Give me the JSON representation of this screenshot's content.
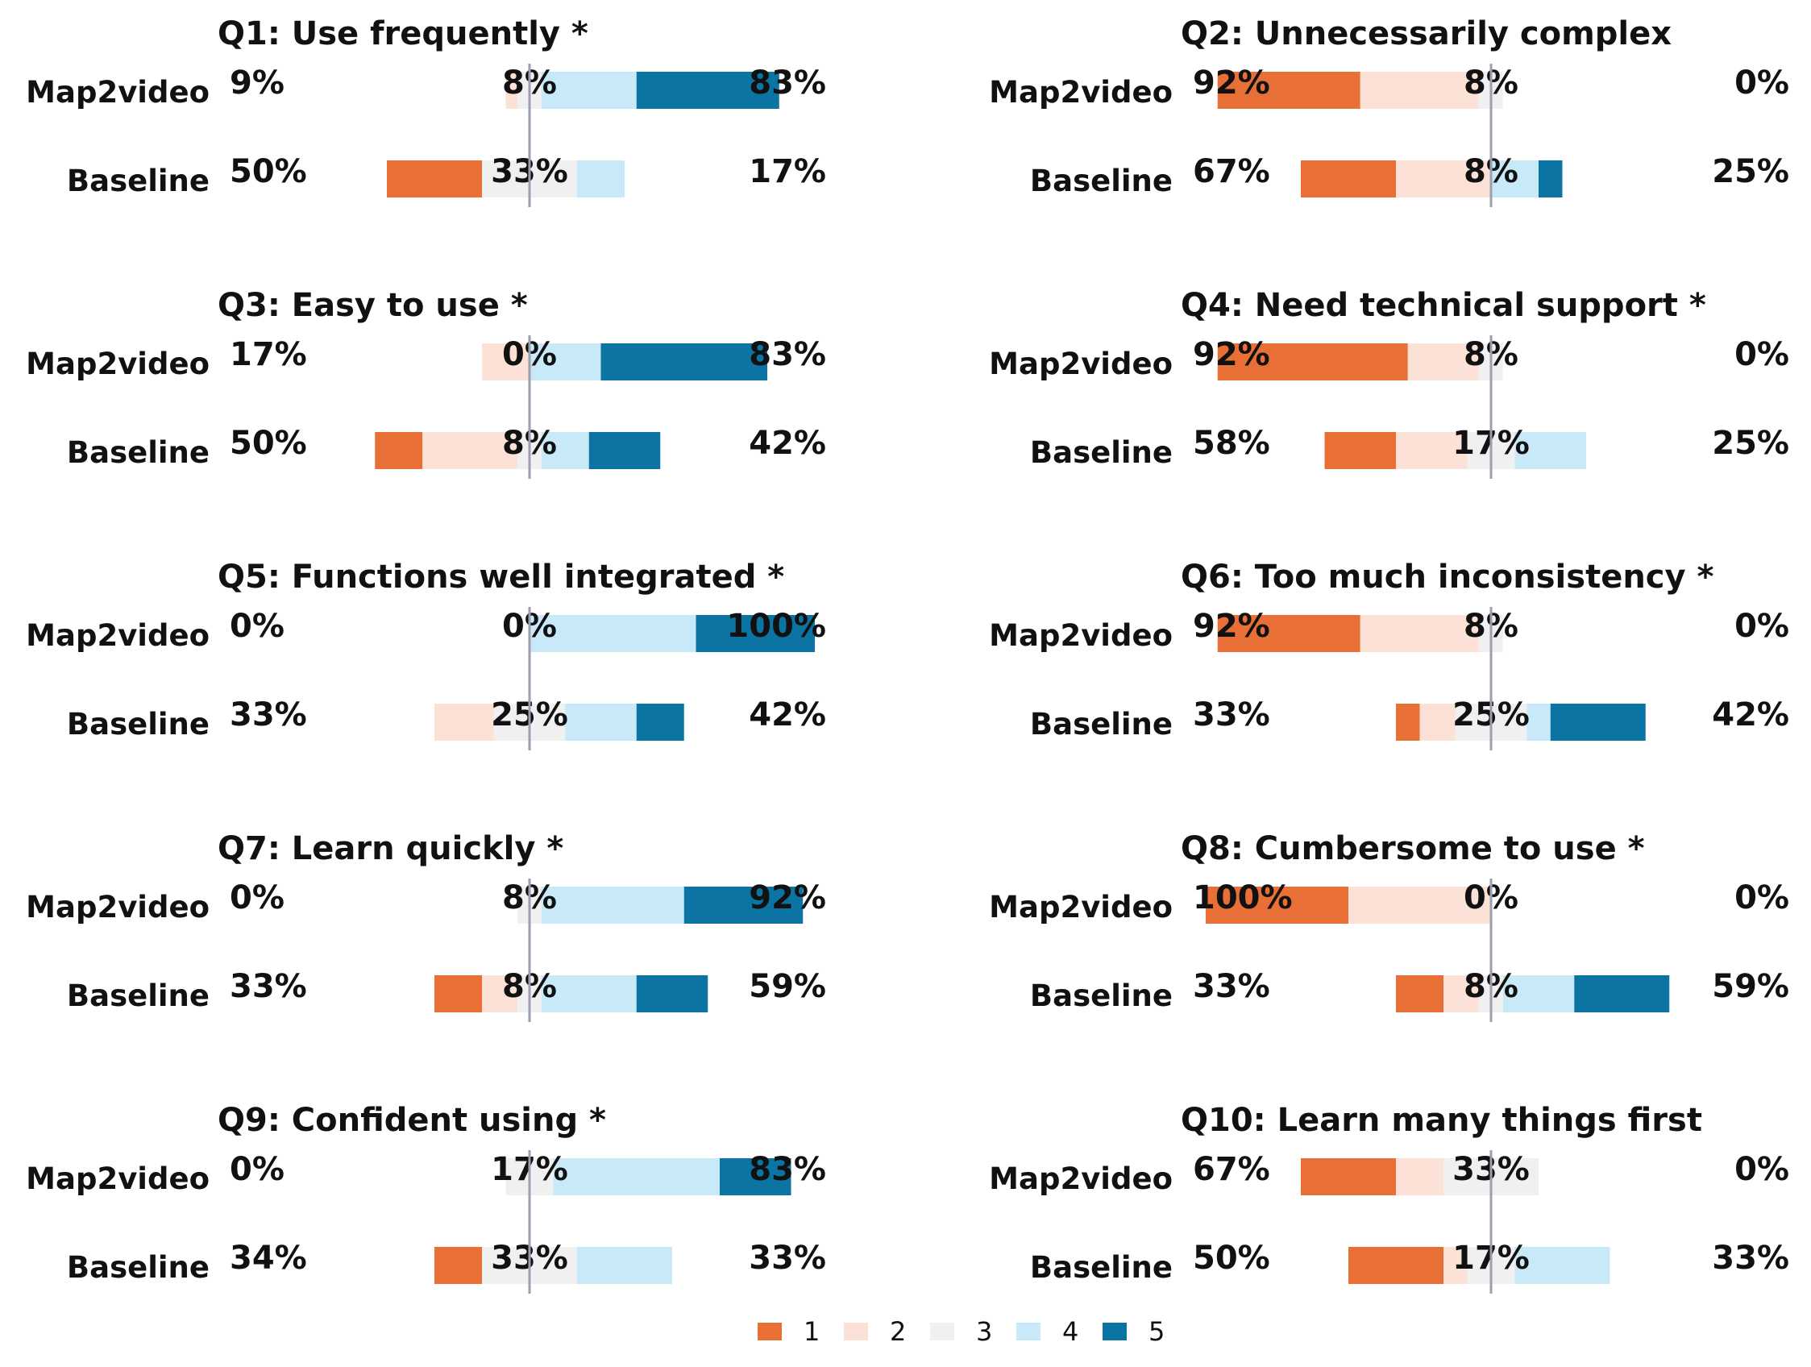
{
  "colors": {
    "1": "#E86F35",
    "2": "#FBE1D6",
    "3": "#F0F0F0",
    "4": "#C8EAF8",
    "5": "#0C74A2",
    "center_line": "#9E9EAE",
    "text": "#111111"
  },
  "legend": {
    "placement": "bottom-center",
    "labels": [
      "1",
      "2",
      "3",
      "4",
      "5"
    ]
  },
  "chart_data": [
    {
      "type": "bar",
      "title": "Q1: Use frequently *",
      "categories": [
        "Map2video",
        "Baseline"
      ],
      "series": [
        {
          "name": "1",
          "values": [
            0,
            2
          ]
        },
        {
          "name": "2",
          "values": [
            0.25,
            0
          ]
        },
        {
          "name": "3",
          "values": [
            0.5,
            2
          ]
        },
        {
          "name": "4",
          "values": [
            2,
            1
          ]
        },
        {
          "name": "5",
          "values": [
            3,
            0
          ]
        }
      ],
      "percent_labels": [
        {
          "negative": "9%",
          "neutral": "8%",
          "positive": "83%"
        },
        {
          "negative": "50%",
          "neutral": "33%",
          "positive": "17%"
        }
      ]
    },
    {
      "type": "bar",
      "title": "Q2: Unnecessarily complex",
      "categories": [
        "Map2video",
        "Baseline"
      ],
      "series": [
        {
          "name": "1",
          "values": [
            3,
            2
          ]
        },
        {
          "name": "2",
          "values": [
            2.5,
            2
          ]
        },
        {
          "name": "3",
          "values": [
            0.5,
            0
          ]
        },
        {
          "name": "4",
          "values": [
            0,
            1
          ]
        },
        {
          "name": "5",
          "values": [
            0,
            0.5
          ]
        }
      ],
      "percent_labels": [
        {
          "negative": "92%",
          "neutral": "8%",
          "positive": "0%"
        },
        {
          "negative": "67%",
          "neutral": "8%",
          "positive": "25%"
        }
      ]
    },
    {
      "type": "bar",
      "title": "Q3: Easy to use *",
      "categories": [
        "Map2video",
        "Baseline"
      ],
      "series": [
        {
          "name": "1",
          "values": [
            0,
            1
          ]
        },
        {
          "name": "2",
          "values": [
            1,
            2
          ]
        },
        {
          "name": "3",
          "values": [
            0,
            0.5
          ]
        },
        {
          "name": "4",
          "values": [
            1.5,
            1
          ]
        },
        {
          "name": "5",
          "values": [
            3.5,
            1.5
          ]
        }
      ],
      "percent_labels": [
        {
          "negative": "17%",
          "neutral": "0%",
          "positive": "83%"
        },
        {
          "negative": "50%",
          "neutral": "8%",
          "positive": "42%"
        }
      ]
    },
    {
      "type": "bar",
      "title": "Q4: Need technical support *",
      "categories": [
        "Map2video",
        "Baseline"
      ],
      "series": [
        {
          "name": "1",
          "values": [
            4,
            1.5
          ]
        },
        {
          "name": "2",
          "values": [
            1.5,
            1.5
          ]
        },
        {
          "name": "3",
          "values": [
            0.5,
            1
          ]
        },
        {
          "name": "4",
          "values": [
            0,
            1.5
          ]
        },
        {
          "name": "5",
          "values": [
            0,
            0
          ]
        }
      ],
      "percent_labels": [
        {
          "negative": "92%",
          "neutral": "8%",
          "positive": "0%"
        },
        {
          "negative": "58%",
          "neutral": "17%",
          "positive": "25%"
        }
      ]
    },
    {
      "type": "bar",
      "title": "Q5: Functions well integrated *",
      "categories": [
        "Map2video",
        "Baseline"
      ],
      "series": [
        {
          "name": "1",
          "values": [
            0,
            0
          ]
        },
        {
          "name": "2",
          "values": [
            0,
            1.25
          ]
        },
        {
          "name": "3",
          "values": [
            0,
            1.5
          ]
        },
        {
          "name": "4",
          "values": [
            3.5,
            1.5
          ]
        },
        {
          "name": "5",
          "values": [
            2.5,
            1
          ]
        }
      ],
      "percent_labels": [
        {
          "negative": "0%",
          "neutral": "0%",
          "positive": "100%"
        },
        {
          "negative": "33%",
          "neutral": "25%",
          "positive": "42%"
        }
      ]
    },
    {
      "type": "bar",
      "title": "Q6: Too much inconsistency *",
      "categories": [
        "Map2video",
        "Baseline"
      ],
      "series": [
        {
          "name": "1",
          "values": [
            3,
            0.5
          ]
        },
        {
          "name": "2",
          "values": [
            2.5,
            0.75
          ]
        },
        {
          "name": "3",
          "values": [
            0.5,
            1.5
          ]
        },
        {
          "name": "4",
          "values": [
            0,
            0.5
          ]
        },
        {
          "name": "5",
          "values": [
            0,
            2
          ]
        }
      ],
      "percent_labels": [
        {
          "negative": "92%",
          "neutral": "8%",
          "positive": "0%"
        },
        {
          "negative": "33%",
          "neutral": "25%",
          "positive": "42%"
        }
      ]
    },
    {
      "type": "bar",
      "title": "Q7: Learn quickly *",
      "categories": [
        "Map2video",
        "Baseline"
      ],
      "series": [
        {
          "name": "1",
          "values": [
            0,
            1
          ]
        },
        {
          "name": "2",
          "values": [
            0,
            0.75
          ]
        },
        {
          "name": "3",
          "values": [
            0.5,
            0.5
          ]
        },
        {
          "name": "4",
          "values": [
            3,
            2
          ]
        },
        {
          "name": "5",
          "values": [
            2.5,
            1.5
          ]
        }
      ],
      "percent_labels": [
        {
          "negative": "0%",
          "neutral": "8%",
          "positive": "92%"
        },
        {
          "negative": "33%",
          "neutral": "8%",
          "positive": "59%"
        }
      ]
    },
    {
      "type": "bar",
      "title": "Q8: Cumbersome to use *",
      "categories": [
        "Map2video",
        "Baseline"
      ],
      "series": [
        {
          "name": "1",
          "values": [
            3,
            1
          ]
        },
        {
          "name": "2",
          "values": [
            3,
            0.75
          ]
        },
        {
          "name": "3",
          "values": [
            0,
            0.5
          ]
        },
        {
          "name": "4",
          "values": [
            0,
            1.5
          ]
        },
        {
          "name": "5",
          "values": [
            0,
            2
          ]
        }
      ],
      "percent_labels": [
        {
          "negative": "100%",
          "neutral": "0%",
          "positive": "0%"
        },
        {
          "negative": "33%",
          "neutral": "8%",
          "positive": "59%"
        }
      ]
    },
    {
      "type": "bar",
      "title": "Q9: Confident using *",
      "categories": [
        "Map2video",
        "Baseline"
      ],
      "series": [
        {
          "name": "1",
          "values": [
            0,
            1
          ]
        },
        {
          "name": "2",
          "values": [
            0,
            0
          ]
        },
        {
          "name": "3",
          "values": [
            1,
            2
          ]
        },
        {
          "name": "4",
          "values": [
            3.5,
            2
          ]
        },
        {
          "name": "5",
          "values": [
            1.5,
            0
          ]
        }
      ],
      "percent_labels": [
        {
          "negative": "0%",
          "neutral": "17%",
          "positive": "83%"
        },
        {
          "negative": "34%",
          "neutral": "33%",
          "positive": "33%"
        }
      ]
    },
    {
      "type": "bar",
      "title": "Q10: Learn many things first",
      "categories": [
        "Map2video",
        "Baseline"
      ],
      "series": [
        {
          "name": "1",
          "values": [
            2,
            2
          ]
        },
        {
          "name": "2",
          "values": [
            1,
            0.5
          ]
        },
        {
          "name": "3",
          "values": [
            2,
            1
          ]
        },
        {
          "name": "4",
          "values": [
            0,
            2
          ]
        },
        {
          "name": "5",
          "values": [
            0,
            0
          ]
        }
      ],
      "percent_labels": [
        {
          "negative": "67%",
          "neutral": "33%",
          "positive": "0%"
        },
        {
          "negative": "50%",
          "neutral": "17%",
          "positive": "33%"
        }
      ]
    }
  ]
}
